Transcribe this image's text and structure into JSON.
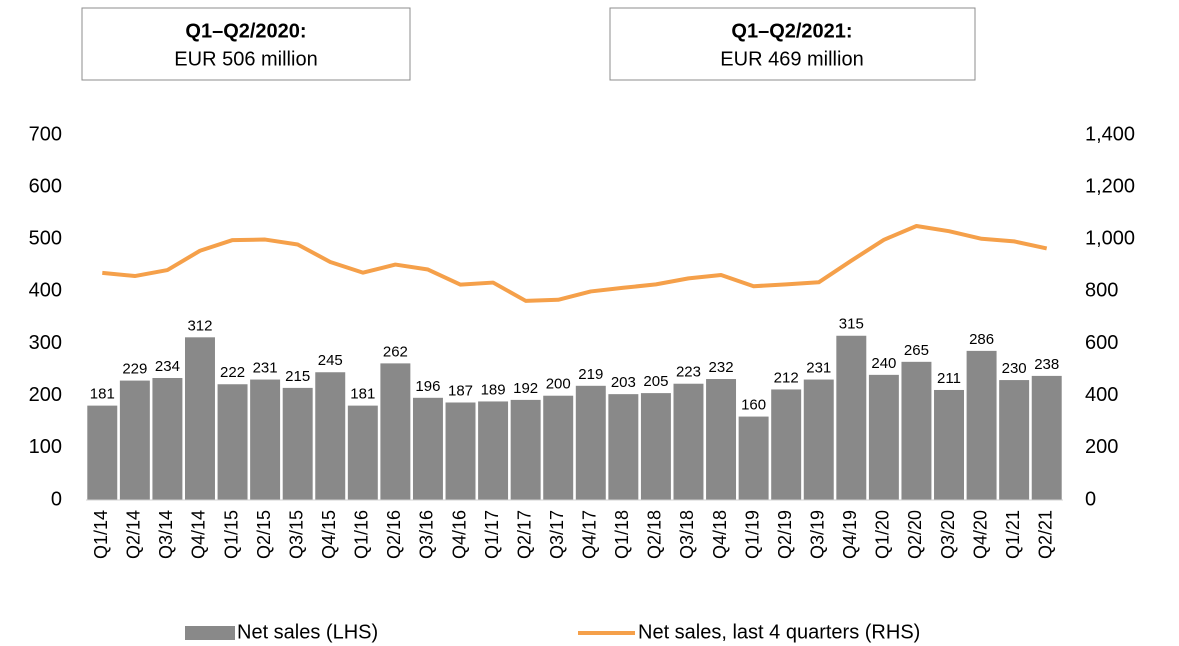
{
  "chart_data": {
    "type": "bar_line",
    "annotations": [
      {
        "title": "Q1–Q2/2020:",
        "text": "EUR 506 million"
      },
      {
        "title": "Q1–Q2/2021:",
        "text": "EUR 469 million"
      }
    ],
    "categories": [
      "Q1/14",
      "Q2/14",
      "Q3/14",
      "Q4/14",
      "Q1/15",
      "Q2/15",
      "Q3/15",
      "Q4/15",
      "Q1/16",
      "Q2/16",
      "Q3/16",
      "Q4/16",
      "Q1/17",
      "Q2/17",
      "Q3/17",
      "Q4/17",
      "Q1/18",
      "Q2/18",
      "Q3/18",
      "Q4/18",
      "Q1/19",
      "Q2/19",
      "Q3/19",
      "Q4/19",
      "Q1/20",
      "Q2/20",
      "Q3/20",
      "Q4/20",
      "Q1/21",
      "Q2/21"
    ],
    "series": [
      {
        "name": "Net sales (LHS)",
        "type": "bar",
        "color": "#898989",
        "values": [
          181,
          229,
          234,
          312,
          222,
          231,
          215,
          245,
          181,
          262,
          196,
          187,
          189,
          192,
          200,
          219,
          203,
          205,
          223,
          232,
          160,
          212,
          231,
          315,
          240,
          265,
          211,
          286,
          230,
          238
        ]
      },
      {
        "name": "Net sales, last 4 quarters (RHS)",
        "type": "line",
        "axis": "y2",
        "color": "#f5a04a",
        "values": [
          871,
          859,
          882,
          956,
          997,
          999,
          980,
          913,
          872,
          903,
          884,
          826,
          834,
          764,
          768,
          800,
          814,
          827,
          850,
          863,
          820,
          827,
          835,
          918,
          998,
          1051,
          1031,
          1002,
          992,
          965
        ]
      }
    ],
    "ylim": [
      0,
      700
    ],
    "yticks": [
      0,
      100,
      200,
      300,
      400,
      500,
      600,
      700
    ],
    "y2lim": [
      0,
      1400
    ],
    "y2ticks": [
      0,
      200,
      400,
      600,
      800,
      {
        "value": 1000,
        "label": "1,000"
      },
      {
        "value": 1200,
        "label": "1,200"
      },
      {
        "value": 1400,
        "label": "1,400"
      }
    ],
    "grid": false,
    "legend": "bottom"
  }
}
